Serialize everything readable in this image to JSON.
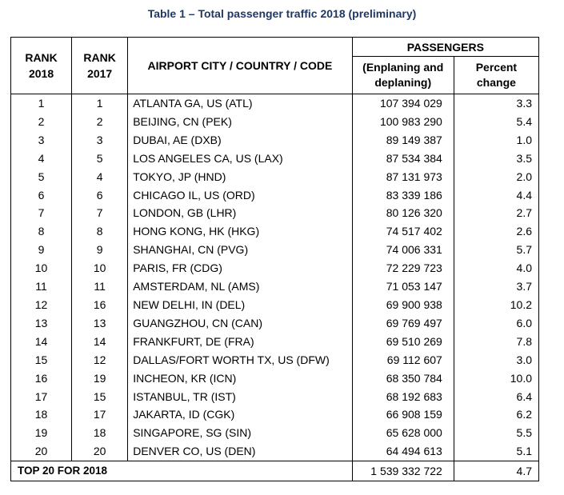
{
  "title": "Table 1 – Total passenger traffic 2018 (preliminary)",
  "headers": {
    "rank2018": [
      "RANK",
      "2018"
    ],
    "rank2017": [
      "RANK",
      "2017"
    ],
    "airport": "AIRPORT CITY / COUNTRY / CODE",
    "passengers": "PASSENGERS",
    "enplaning": [
      "(Enplaning and",
      "deplaning)"
    ],
    "percent": [
      "Percent",
      "change"
    ]
  },
  "rows": [
    {
      "r18": "1",
      "r17": "1",
      "airport": "ATLANTA GA, US (ATL)",
      "passengers": "107 394 029",
      "change": "3.3"
    },
    {
      "r18": "2",
      "r17": "2",
      "airport": "BEIJING, CN (PEK)",
      "passengers": "100 983 290",
      "change": "5.4"
    },
    {
      "r18": "3",
      "r17": "3",
      "airport": "DUBAI, AE (DXB)",
      "passengers": "89 149 387",
      "change": "1.0"
    },
    {
      "r18": "4",
      "r17": "5",
      "airport": "LOS ANGELES CA, US (LAX)",
      "passengers": "87 534 384",
      "change": "3.5"
    },
    {
      "r18": "5",
      "r17": "4",
      "airport": "TOKYO, JP (HND)",
      "passengers": "87 131 973",
      "change": "2.0"
    },
    {
      "r18": "6",
      "r17": "6",
      "airport": "CHICAGO IL, US (ORD)",
      "passengers": "83 339 186",
      "change": "4.4"
    },
    {
      "r18": "7",
      "r17": "7",
      "airport": "LONDON, GB (LHR)",
      "passengers": "80 126 320",
      "change": "2.7"
    },
    {
      "r18": "8",
      "r17": "8",
      "airport": "HONG KONG, HK (HKG)",
      "passengers": "74 517 402",
      "change": "2.6"
    },
    {
      "r18": "9",
      "r17": "9",
      "airport": "SHANGHAI, CN (PVG)",
      "passengers": "74 006 331",
      "change": "5.7"
    },
    {
      "r18": "10",
      "r17": "10",
      "airport": "PARIS, FR (CDG)",
      "passengers": "72 229 723",
      "change": "4.0"
    },
    {
      "r18": "11",
      "r17": "11",
      "airport": "AMSTERDAM, NL (AMS)",
      "passengers": "71 053 147",
      "change": "3.7"
    },
    {
      "r18": "12",
      "r17": "16",
      "airport": "NEW DELHI, IN (DEL)",
      "passengers": "69 900 938",
      "change": "10.2"
    },
    {
      "r18": "13",
      "r17": "13",
      "airport": "GUANGZHOU, CN (CAN)",
      "passengers": "69 769 497",
      "change": "6.0"
    },
    {
      "r18": "14",
      "r17": "14",
      "airport": "FRANKFURT, DE (FRA)",
      "passengers": "69 510 269",
      "change": "7.8"
    },
    {
      "r18": "15",
      "r17": "12",
      "airport": "DALLAS/FORT WORTH TX, US (DFW)",
      "passengers": "69 112 607",
      "change": "3.0"
    },
    {
      "r18": "16",
      "r17": "19",
      "airport": "INCHEON, KR (ICN)",
      "passengers": "68 350 784",
      "change": "10.0"
    },
    {
      "r18": "17",
      "r17": "15",
      "airport": "ISTANBUL, TR (IST)",
      "passengers": "68 192 683",
      "change": "6.4"
    },
    {
      "r18": "18",
      "r17": "17",
      "airport": "JAKARTA, ID (CGK)",
      "passengers": "66 908 159",
      "change": "6.2"
    },
    {
      "r18": "19",
      "r17": "18",
      "airport": "SINGAPORE, SG (SIN)",
      "passengers": "65 628 000",
      "change": "5.5"
    },
    {
      "r18": "20",
      "r17": "20",
      "airport": "DENVER CO, US (DEN)",
      "passengers": "64 494 613",
      "change": "5.1"
    }
  ],
  "total": {
    "label": "TOP 20 FOR 2018",
    "passengers": "1 539 332 722",
    "change": "4.7"
  },
  "colors": {
    "title": "#1f3864",
    "border": "#000000"
  }
}
